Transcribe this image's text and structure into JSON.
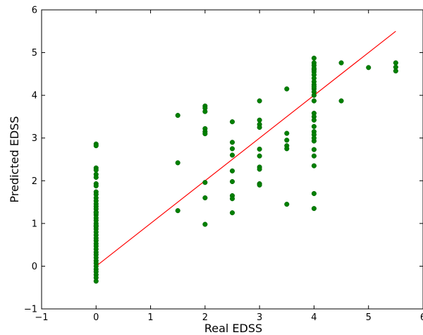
{
  "chart_data": {
    "type": "scatter",
    "title": "",
    "xlabel": "Real EDSS",
    "ylabel": "Predicted EDSS",
    "xlim": [
      -1,
      6
    ],
    "ylim": [
      -1,
      6
    ],
    "xticks": [
      -1,
      0,
      1,
      2,
      3,
      4,
      5,
      6
    ],
    "yticks": [
      -1,
      0,
      1,
      2,
      3,
      4,
      5,
      6
    ],
    "xtick_labels": [
      "−1",
      "0",
      "1",
      "2",
      "3",
      "4",
      "5",
      "6"
    ],
    "ytick_labels": [
      "−1",
      "0",
      "1",
      "2",
      "3",
      "4",
      "5",
      "6"
    ],
    "grid": false,
    "marker_color": "#008000",
    "line_color": "#ff0000",
    "fit_line": {
      "x": [
        0,
        5.5
      ],
      "y": [
        0,
        5.5
      ]
    },
    "series": [
      {
        "x": [
          0,
          0,
          0,
          0,
          0,
          0,
          0,
          0,
          0,
          0,
          0,
          0,
          0,
          0,
          0,
          0,
          0,
          0,
          0,
          0,
          0,
          0,
          0,
          0,
          0,
          0,
          0,
          0,
          0,
          0,
          0,
          0,
          0,
          0,
          0,
          0,
          0,
          0,
          0,
          0,
          0,
          0,
          1.5,
          1.5,
          1.5,
          2,
          2,
          2,
          2,
          2,
          2,
          2,
          2,
          2,
          2.5,
          2.5,
          2.5,
          2.5,
          2.5,
          2.5,
          2.5,
          2.5,
          2.5,
          3,
          3,
          3,
          3,
          3,
          3,
          3,
          3,
          3,
          3,
          3.5,
          3.5,
          3.5,
          3.5,
          3.5,
          3.5,
          4,
          4,
          4,
          4,
          4,
          4,
          4,
          4,
          4,
          4,
          4,
          4,
          4,
          4,
          4,
          4,
          4,
          4,
          4,
          4,
          4,
          4,
          4,
          4,
          4,
          4,
          4,
          4,
          4.5,
          4.5,
          5,
          5.5,
          5.5,
          5.5
        ],
        "y": [
          2.86,
          2.82,
          2.3,
          2.25,
          2.15,
          2.08,
          1.93,
          1.88,
          1.74,
          1.68,
          1.6,
          1.53,
          1.46,
          1.4,
          1.34,
          1.27,
          1.2,
          1.13,
          1.07,
          1.0,
          0.93,
          0.87,
          0.8,
          0.73,
          0.66,
          0.6,
          0.53,
          0.47,
          0.4,
          0.33,
          0.27,
          0.2,
          0.13,
          0.07,
          0.0,
          -0.07,
          -0.13,
          -0.2,
          -0.27,
          -0.35,
          0.95,
          1.25,
          3.53,
          2.42,
          1.3,
          3.75,
          3.7,
          3.62,
          3.22,
          3.15,
          3.1,
          1.96,
          1.6,
          0.98,
          3.38,
          2.9,
          2.75,
          2.6,
          2.23,
          1.98,
          1.65,
          1.58,
          1.25,
          3.87,
          3.42,
          3.32,
          3.25,
          2.74,
          2.58,
          2.32,
          2.27,
          1.93,
          1.9,
          4.15,
          3.11,
          2.95,
          2.82,
          2.75,
          1.45,
          4.87,
          4.76,
          4.7,
          4.6,
          4.55,
          4.48,
          4.4,
          4.32,
          4.25,
          4.15,
          4.08,
          4.0,
          3.87,
          3.58,
          3.5,
          3.42,
          3.27,
          3.15,
          3.08,
          2.93,
          2.73,
          2.58,
          2.35,
          1.7,
          1.35,
          3.0,
          4.63,
          4.2,
          4.76,
          3.87,
          4.65,
          4.76,
          4.66,
          4.57
        ]
      }
    ]
  }
}
